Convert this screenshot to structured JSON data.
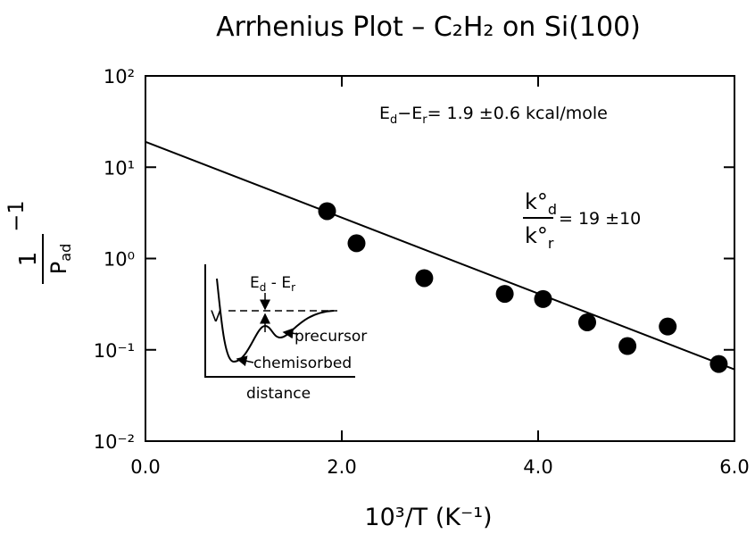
{
  "chart_data": {
    "type": "scatter",
    "title": "Arrhenius Plot – C₂H₂ on Si(100)",
    "x_label": "10³/T (K⁻¹)",
    "y_label": {
      "numerator": "1",
      "denominator": [
        "P",
        "ad"
      ],
      "suffix": "−1"
    },
    "xlim": [
      0,
      6
    ],
    "xticks": [
      {
        "value": 0,
        "label": "0.0"
      },
      {
        "value": 2,
        "label": "2.0"
      },
      {
        "value": 4,
        "label": "4.0"
      },
      {
        "value": 6,
        "label": "6.0"
      }
    ],
    "ylim": [
      0.01,
      100
    ],
    "ylog": true,
    "yticks": [
      {
        "value": 0.01,
        "label": "10⁻²"
      },
      {
        "value": 0.1,
        "label": "10⁻¹"
      },
      {
        "value": 1,
        "label": "10⁰"
      },
      {
        "value": 10,
        "label": "10¹"
      },
      {
        "value": 100,
        "label": "10²"
      }
    ],
    "series": [
      {
        "type": "scatter",
        "color": "#000000",
        "x": [
          1.85,
          2.15,
          2.84,
          3.66,
          4.05,
          4.5,
          4.91,
          5.32,
          5.84
        ],
        "values": [
          3.3,
          1.47,
          0.61,
          0.41,
          0.36,
          0.2,
          0.11,
          0.18,
          0.07
        ]
      },
      {
        "type": "line",
        "color": "#000000",
        "x": [
          0,
          6
        ],
        "values": [
          19,
          0.061
        ]
      }
    ],
    "annotations": {
      "energy": [
        "E",
        "d",
        "−E",
        "r",
        "= 1.9 ±0.6 kcal/mole"
      ],
      "ratio": {
        "numerator": [
          "k°",
          "d"
        ],
        "denominator": [
          "k°",
          "r"
        ],
        "suffix": "= 19 ±10"
      }
    },
    "inset": {
      "y_label": "V",
      "x_label": "distance",
      "barrier": [
        "E",
        "d",
        " - E",
        "r"
      ],
      "precursor": "precursor",
      "chemisorbed": "chemisorbed"
    }
  }
}
